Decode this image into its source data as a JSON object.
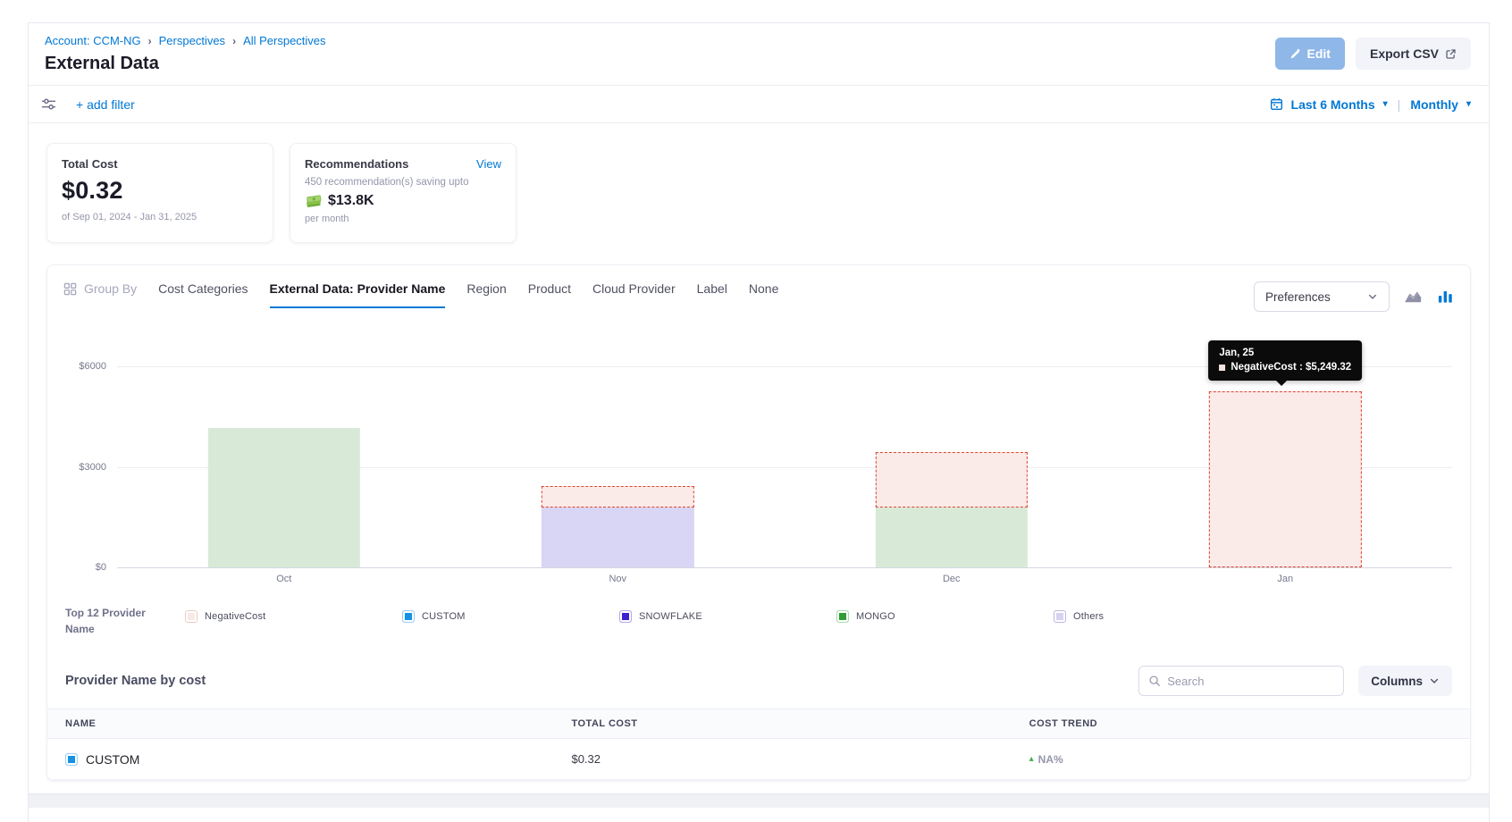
{
  "page": {
    "breadcrumb": {
      "account": "Account: CCM-NG",
      "separator": "›",
      "crumb1": "Perspectives",
      "crumb2": "All Perspectives"
    },
    "title": "External Data",
    "edit_button": "Edit",
    "export_button": "Export CSV"
  },
  "filter_bar": {
    "add_filter": "+ add filter",
    "date_range": "Last 6 Months",
    "granularity": "Monthly"
  },
  "cards": {
    "total_cost": {
      "label": "Total Cost",
      "value": "$0.32",
      "period": "of Sep 01, 2024 - Jan 31, 2025"
    },
    "recommendations": {
      "label": "Recommendations",
      "view_link": "View",
      "subtitle": "450 recommendation(s) saving upto",
      "savings": "$13.8K",
      "per": "per month"
    }
  },
  "group_by": {
    "label": "Group By",
    "tabs": [
      "Cost Categories",
      "External Data: Provider Name",
      "Region",
      "Product",
      "Cloud Provider",
      "Label",
      "None"
    ],
    "active_index": 1,
    "preferences": "Preferences"
  },
  "chart_data": {
    "type": "bar",
    "stacked": true,
    "categories": [
      "Oct",
      "Nov",
      "Dec",
      "Jan"
    ],
    "ylim": [
      0,
      6400
    ],
    "y_ticks": [
      {
        "label": "$6000",
        "value": 6000
      },
      {
        "label": "$3000",
        "value": 3000
      },
      {
        "label": "$0",
        "value": 0
      }
    ],
    "series": [
      {
        "name": "MONGO",
        "fill": "#d8ead7",
        "dashed": false,
        "values": [
          4160,
          0,
          1780,
          0
        ]
      },
      {
        "name": "SNOWFLAKE",
        "fill": "#d9d5f4",
        "dashed": false,
        "values": [
          0,
          1780,
          0,
          0
        ]
      },
      {
        "name": "NegativeCost",
        "fill": "#fbebe8",
        "dashed": true,
        "values": [
          0,
          635,
          1670,
          5249.32
        ]
      }
    ],
    "tooltip": {
      "category_index": 3,
      "title": "Jan, 25",
      "series": "NegativeCost",
      "value_text": "$5,249.32"
    },
    "legend_position": "bottom",
    "grid": true
  },
  "legend": {
    "title": "Top 12 Provider Name",
    "items": [
      {
        "label": "NegativeCost",
        "color": "#f9e9e5",
        "border": "#ecccc5"
      },
      {
        "label": "CUSTOM",
        "color": "#1592e6",
        "border": "#9ccdf2"
      },
      {
        "label": "SNOWFLAKE",
        "color": "#3c23cd",
        "border": "#b2a8ec"
      },
      {
        "label": "MONGO",
        "color": "#2f9e33",
        "border": "#aed9af"
      },
      {
        "label": "Others",
        "color": "#d6d2f2",
        "border": "#bdb8e4"
      }
    ]
  },
  "table": {
    "section_title": "Provider Name by cost",
    "search_placeholder": "Search",
    "columns_button": "Columns",
    "headers": [
      "NAME",
      "TOTAL COST",
      "COST TREND"
    ],
    "rows": [
      {
        "name": "CUSTOM",
        "swatch": "#1592e6",
        "total_cost": "$0.32",
        "trend": "NA%",
        "trend_direction": "up"
      }
    ]
  },
  "colors": {
    "accent_blue": "#0278d5",
    "negative_dash": "#dd4433",
    "trend_green": "#3fae4a"
  }
}
